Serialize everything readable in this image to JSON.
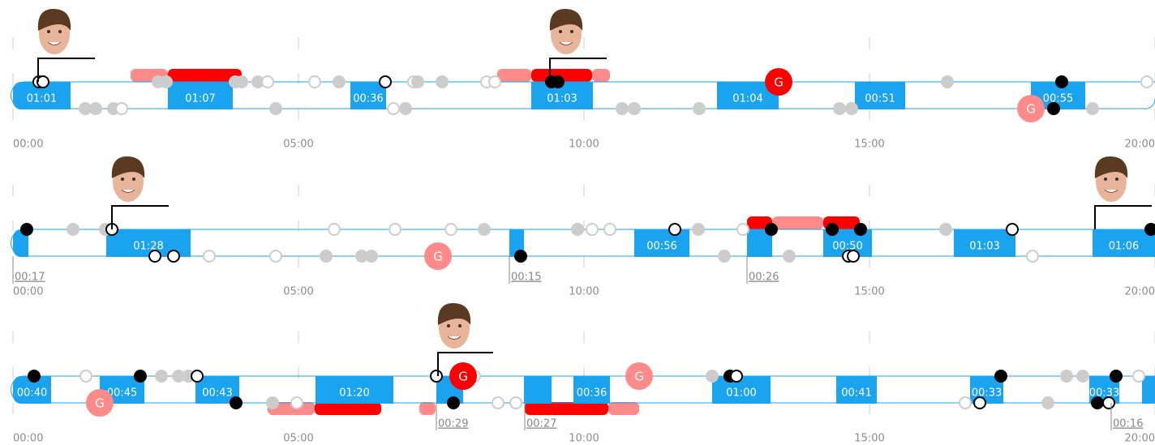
{
  "rows": [
    {
      "axis": [
        "00:00",
        "05:00",
        "10:00",
        "15:00",
        "20:00"
      ],
      "blocks": [
        "01:01",
        "01:07",
        "00:36",
        "01:03",
        "01:04",
        "00:51",
        "00:55"
      ],
      "goals": [
        "G",
        "G"
      ],
      "notes": []
    },
    {
      "axis": [
        "00:00",
        "05:00",
        "10:00",
        "15:00",
        "20:00"
      ],
      "blocks": [
        "01:28",
        "00:56",
        "00:50",
        "01:03",
        "01:06"
      ],
      "goals": [
        "G"
      ],
      "notes": [
        "00:17",
        "00:15",
        "00:26"
      ]
    },
    {
      "axis": [
        "00:00",
        "05:00",
        "10:00",
        "15:00",
        "20:00"
      ],
      "blocks": [
        "00:40",
        "00:45",
        "00:43",
        "01:20",
        "00:36",
        "01:00",
        "00:41",
        "00:33",
        "00:33"
      ],
      "goals": [
        "G",
        "G",
        "G"
      ],
      "notes": [
        "00:29",
        "00:27",
        "00:16"
      ]
    }
  ]
}
